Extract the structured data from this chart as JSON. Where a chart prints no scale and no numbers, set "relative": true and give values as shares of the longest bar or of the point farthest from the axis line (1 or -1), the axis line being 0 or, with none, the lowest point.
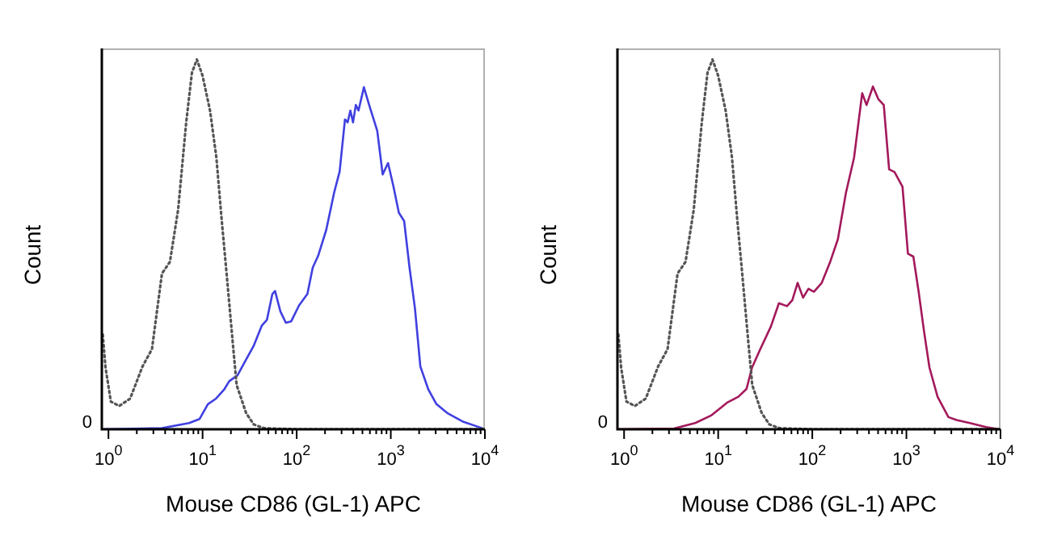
{
  "chart_data": [
    {
      "type": "line",
      "relative": true,
      "xlabel": "Mouse CD86 (GL-1) APC",
      "ylabel": "Count",
      "annotations": [
        "0"
      ],
      "log": "x",
      "grid": false,
      "legend": false,
      "marker": "none",
      "xlim": [
        0.85,
        10000
      ],
      "xticks": [
        {
          "value": 1,
          "label": "10$^{0}$"
        },
        {
          "value": 2,
          "label": null
        },
        {
          "value": 3,
          "label": null
        },
        {
          "value": 4,
          "label": null
        },
        {
          "value": 5,
          "label": null
        },
        {
          "value": 6,
          "label": null
        },
        {
          "value": 7,
          "label": null
        },
        {
          "value": 8,
          "label": null
        },
        {
          "value": 9,
          "label": null
        },
        {
          "value": 10,
          "label": "10$^{1}$"
        },
        {
          "value": 20,
          "label": null
        },
        {
          "value": 30,
          "label": null
        },
        {
          "value": 40,
          "label": null
        },
        {
          "value": 50,
          "label": null
        },
        {
          "value": 60,
          "label": null
        },
        {
          "value": 70,
          "label": null
        },
        {
          "value": 80,
          "label": null
        },
        {
          "value": 90,
          "label": null
        },
        {
          "value": 100,
          "label": "10$^{2}$"
        },
        {
          "value": 200,
          "label": null
        },
        {
          "value": 300,
          "label": null
        },
        {
          "value": 400,
          "label": null
        },
        {
          "value": 500,
          "label": null
        },
        {
          "value": 600,
          "label": null
        },
        {
          "value": 700,
          "label": null
        },
        {
          "value": 800,
          "label": null
        },
        {
          "value": 900,
          "label": null
        },
        {
          "value": 1000,
          "label": "10$^{3}$"
        },
        {
          "value": 2000,
          "label": null
        },
        {
          "value": 3000,
          "label": null
        },
        {
          "value": 4000,
          "label": null
        },
        {
          "value": 5000,
          "label": null
        },
        {
          "value": 6000,
          "label": null
        },
        {
          "value": 7000,
          "label": null
        },
        {
          "value": 8000,
          "label": null
        },
        {
          "value": 9000,
          "label": null
        },
        {
          "value": 10000,
          "label": "10$^{4}$"
        }
      ],
      "series": [
        {
          "color": "#555555",
          "line_style": "dotted",
          "x": [
            0.87,
            0.93,
            1.06,
            1.3,
            1.7,
            2.3,
            2.9,
            3.7,
            4.5,
            5.5,
            6.7,
            7.7,
            8.7,
            10,
            12,
            14,
            16,
            18,
            21,
            23,
            29,
            35,
            45,
            100,
            10000
          ],
          "values": [
            0.256,
            0.167,
            0.075,
            0.063,
            0.083,
            0.17,
            0.217,
            0.421,
            0.453,
            0.594,
            0.83,
            0.964,
            1,
            0.956,
            0.862,
            0.736,
            0.563,
            0.421,
            0.23,
            0.12,
            0.044,
            0.013,
            0.003,
            0,
            0
          ]
        },
        {
          "color": "#4040e0",
          "line_style": "solid",
          "x": [
            0.87,
            3.7,
            7.2,
            9.3,
            11.4,
            13.9,
            16.9,
            19.2,
            23.5,
            28.6,
            34.8,
            42.5,
            48.3,
            55.2,
            58.9,
            67.1,
            76.7,
            87.5,
            106,
            130,
            148,
            169,
            206,
            251,
            286,
            326,
            348,
            372,
            397,
            425,
            454,
            518,
            589,
            718,
            820,
            935,
            1067,
            1217,
            1387,
            1582,
            1806,
            2061,
            2512,
            3057,
            3981,
            5916,
            9355
          ],
          "values": [
            0,
            0.003,
            0.017,
            0.028,
            0.068,
            0.083,
            0.107,
            0.13,
            0.146,
            0.186,
            0.225,
            0.28,
            0.296,
            0.366,
            0.374,
            0.319,
            0.288,
            0.292,
            0.335,
            0.366,
            0.437,
            0.469,
            0.539,
            0.642,
            0.697,
            0.838,
            0.83,
            0.862,
            0.83,
            0.877,
            0.862,
            0.925,
            0.877,
            0.807,
            0.689,
            0.72,
            0.657,
            0.586,
            0.563,
            0.437,
            0.327,
            0.17,
            0.107,
            0.068,
            0.044,
            0.02,
            0.003
          ]
        }
      ]
    },
    {
      "type": "line",
      "relative": true,
      "xlabel": "Mouse CD86 (GL-1) APC",
      "ylabel": "Count",
      "annotations": [
        "0"
      ],
      "log": "x",
      "grid": false,
      "legend": false,
      "marker": "none",
      "xlim": [
        0.85,
        10000
      ],
      "xticks": [
        {
          "value": 1,
          "label": "10$^{0}$"
        },
        {
          "value": 2,
          "label": null
        },
        {
          "value": 3,
          "label": null
        },
        {
          "value": 4,
          "label": null
        },
        {
          "value": 5,
          "label": null
        },
        {
          "value": 6,
          "label": null
        },
        {
          "value": 7,
          "label": null
        },
        {
          "value": 8,
          "label": null
        },
        {
          "value": 9,
          "label": null
        },
        {
          "value": 10,
          "label": "10$^{1}$"
        },
        {
          "value": 20,
          "label": null
        },
        {
          "value": 30,
          "label": null
        },
        {
          "value": 40,
          "label": null
        },
        {
          "value": 50,
          "label": null
        },
        {
          "value": 60,
          "label": null
        },
        {
          "value": 70,
          "label": null
        },
        {
          "value": 80,
          "label": null
        },
        {
          "value": 90,
          "label": null
        },
        {
          "value": 100,
          "label": "10$^{2}$"
        },
        {
          "value": 200,
          "label": null
        },
        {
          "value": 300,
          "label": null
        },
        {
          "value": 400,
          "label": null
        },
        {
          "value": 500,
          "label": null
        },
        {
          "value": 600,
          "label": null
        },
        {
          "value": 700,
          "label": null
        },
        {
          "value": 800,
          "label": null
        },
        {
          "value": 900,
          "label": null
        },
        {
          "value": 1000,
          "label": "10$^{3}$"
        },
        {
          "value": 2000,
          "label": null
        },
        {
          "value": 3000,
          "label": null
        },
        {
          "value": 4000,
          "label": null
        },
        {
          "value": 5000,
          "label": null
        },
        {
          "value": 6000,
          "label": null
        },
        {
          "value": 7000,
          "label": null
        },
        {
          "value": 8000,
          "label": null
        },
        {
          "value": 9000,
          "label": null
        },
        {
          "value": 10000,
          "label": "10$^{4}$"
        }
      ],
      "series": [
        {
          "color": "#555555",
          "line_style": "dotted",
          "x": [
            0.87,
            0.93,
            1.06,
            1.3,
            1.7,
            2.3,
            2.9,
            3.7,
            4.5,
            5.5,
            6.7,
            7.7,
            8.7,
            10,
            12,
            14,
            16,
            18,
            21,
            23,
            29,
            35,
            45,
            100,
            10000
          ],
          "values": [
            0.256,
            0.167,
            0.075,
            0.063,
            0.083,
            0.17,
            0.217,
            0.421,
            0.453,
            0.594,
            0.83,
            0.964,
            1,
            0.956,
            0.862,
            0.736,
            0.563,
            0.421,
            0.23,
            0.12,
            0.044,
            0.013,
            0.003,
            0,
            0
          ]
        },
        {
          "color": "#a3195b",
          "line_style": "solid",
          "x": [
            0.87,
            3.4,
            5.7,
            8.5,
            12.6,
            16.4,
            20,
            22.9,
            27.8,
            36.3,
            44.2,
            53.8,
            61.3,
            69.8,
            79.8,
            91,
            104,
            126,
            154,
            187,
            228,
            278,
            339,
            377,
            441,
            503,
            575,
            655,
            747,
            909,
            1038,
            1186,
            1349,
            1545,
            1758,
            2143,
            2794,
            3404,
            4721,
            7015,
            9727
          ],
          "values": [
            0,
            0.002,
            0.017,
            0.038,
            0.073,
            0.088,
            0.109,
            0.167,
            0.215,
            0.278,
            0.341,
            0.333,
            0.349,
            0.396,
            0.356,
            0.38,
            0.372,
            0.396,
            0.451,
            0.514,
            0.64,
            0.735,
            0.909,
            0.877,
            0.927,
            0.893,
            0.877,
            0.703,
            0.696,
            0.656,
            0.475,
            0.467,
            0.372,
            0.262,
            0.167,
            0.088,
            0.033,
            0.025,
            0.017,
            0.006,
            0
          ]
        }
      ]
    }
  ]
}
